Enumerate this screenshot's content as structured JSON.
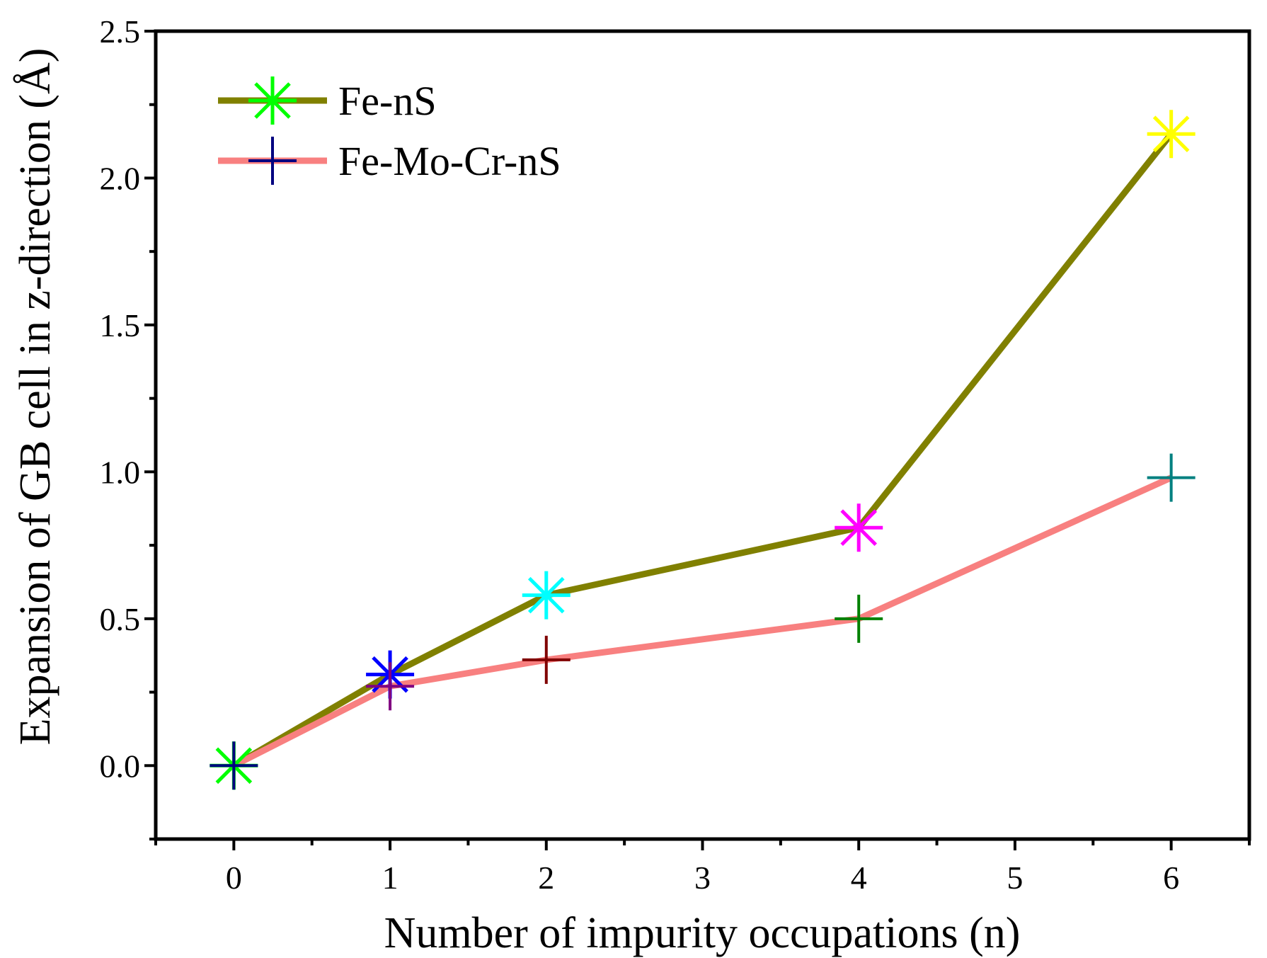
{
  "chart_data": {
    "type": "line",
    "title": "",
    "xlabel": "Number of impurity occupations (n)",
    "ylabel": "Expansion of GB cell in z-direction (Å)",
    "x_categories": [
      "0",
      "1",
      "2",
      "3",
      "4",
      "5",
      "6"
    ],
    "xlim": [
      -0.5,
      6.5
    ],
    "ylim": [
      -0.25,
      2.5
    ],
    "yticks": [
      "0.0",
      "0.5",
      "1.0",
      "1.5",
      "2.0",
      "2.5"
    ],
    "legend_position": "top-left",
    "series": [
      {
        "name": "Fe-nS",
        "line_color": "#808000",
        "marker": "asterisk",
        "x": [
          0,
          1,
          2,
          4,
          6
        ],
        "y": [
          0.0,
          0.31,
          0.58,
          0.81,
          2.15
        ],
        "marker_colors": [
          "#00ff00",
          "#0000ff",
          "#00ffff",
          "#ff00ff",
          "#ffff00"
        ],
        "legend_marker_color": "#00ff00"
      },
      {
        "name": "Fe-Mo-Cr-nS",
        "line_color": "#f88080",
        "marker": "plus",
        "x": [
          0,
          1,
          2,
          4,
          6
        ],
        "y": [
          0.0,
          0.27,
          0.36,
          0.5,
          0.98
        ],
        "marker_colors": [
          "#000080",
          "#800080",
          "#800000",
          "#008000",
          "#008080"
        ],
        "legend_marker_color": "#000080"
      }
    ]
  }
}
